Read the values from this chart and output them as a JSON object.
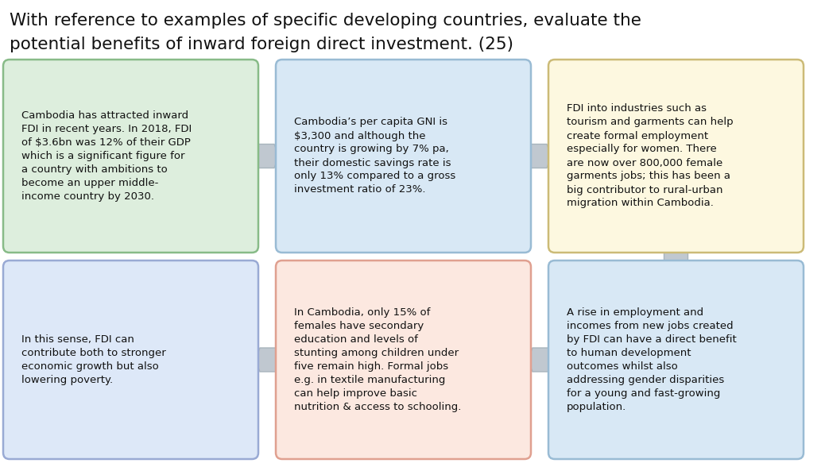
{
  "title_line1": "With reference to examples of specific developing countries, evaluate the",
  "title_line2": "potential benefits of inward foreign direct investment. (25)",
  "title_fontsize": 15.5,
  "background_color": "#ffffff",
  "boxes": [
    {
      "id": "box1",
      "text": "Cambodia has attracted inward\nFDI in recent years. In 2018, FDI\nof $3.6bn was 12% of their GDP\nwhich is a significant figure for\na country with ambitions to\nbecome an upper middle-\nincome country by 2030.",
      "bg_color": "#ddeedd",
      "border_color": "#88bb88",
      "col": 0,
      "row": 0
    },
    {
      "id": "box2",
      "text": "Cambodia’s per capita GNI is\n$3,300 and although the\ncountry is growing by 7% pa,\ntheir domestic savings rate is\nonly 13% compared to a gross\ninvestment ratio of 23%.",
      "bg_color": "#d8e8f5",
      "border_color": "#99bbd4",
      "col": 1,
      "row": 0
    },
    {
      "id": "box3",
      "text": "FDI into industries such as\ntourism and garments can help\ncreate formal employment\nespecially for women. There\nare now over 800,000 female\ngarments jobs; this has been a\nbig contributor to rural-urban\nmigration within Cambodia.",
      "bg_color": "#fdf8e0",
      "border_color": "#ccbb77",
      "col": 2,
      "row": 0
    },
    {
      "id": "box4",
      "text": "In this sense, FDI can\ncontribute both to stronger\neconomic growth but also\nlowering poverty.",
      "bg_color": "#dde8f8",
      "border_color": "#99aad4",
      "col": 0,
      "row": 1
    },
    {
      "id": "box5",
      "text": "In Cambodia, only 15% of\nfemales have secondary\neducation and levels of\nstunting among children under\nfive remain high. Formal jobs\ne.g. in textile manufacturing\ncan help improve basic\nnutrition & access to schooling.",
      "bg_color": "#fce8e0",
      "border_color": "#e0a090",
      "col": 1,
      "row": 1
    },
    {
      "id": "box6",
      "text": "A rise in employment and\nincomes from new jobs created\nby FDI can have a direct benefit\nto human development\noutcomes whilst also\naddressing gender disparities\nfor a young and fast-growing\npopulation.",
      "bg_color": "#d8e8f5",
      "border_color": "#99bbd4",
      "col": 2,
      "row": 1
    }
  ],
  "arrow_color": "#c0c8d0",
  "arrow_edge_color": "#a8b4bc"
}
